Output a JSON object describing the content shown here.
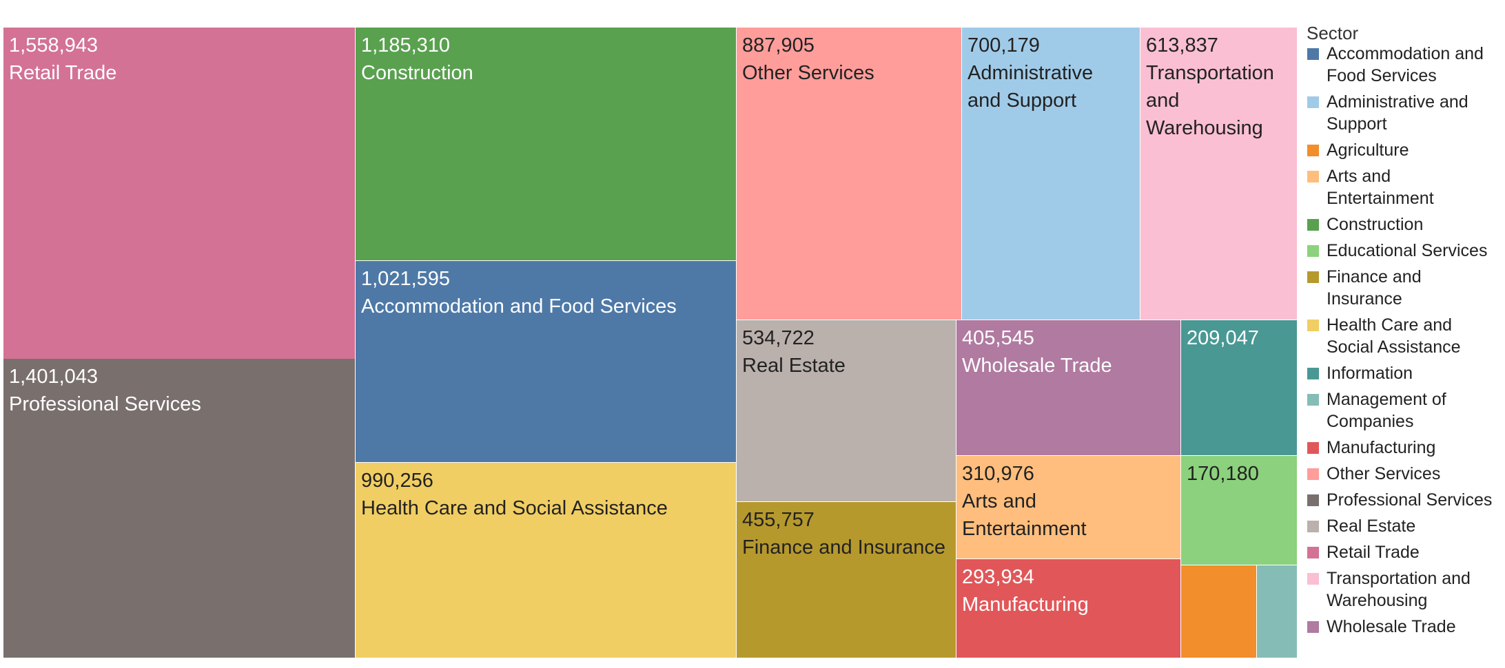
{
  "chart_data": {
    "type": "treemap",
    "legend_title": "Sector",
    "legend_position": "right",
    "tiles": [
      {
        "sector": "Retail Trade",
        "value": 1558943,
        "value_label": "1,558,943",
        "label_lines": [
          "Retail Trade"
        ],
        "color": "#D37295",
        "text_color": "#ffffff"
      },
      {
        "sector": "Professional Services",
        "value": 1401043,
        "value_label": "1,401,043",
        "label_lines": [
          "Professional Services"
        ],
        "color": "#79706E",
        "text_color": "#ffffff"
      },
      {
        "sector": "Construction",
        "value": 1185310,
        "value_label": "1,185,310",
        "label_lines": [
          "Construction"
        ],
        "color": "#59A14F",
        "text_color": "#ffffff"
      },
      {
        "sector": "Accommodation and Food Services",
        "value": 1021595,
        "value_label": "1,021,595",
        "label_lines": [
          "Accommodation and Food Services"
        ],
        "color": "#4E79A7",
        "text_color": "#ffffff"
      },
      {
        "sector": "Health Care and Social Assistance",
        "value": 990256,
        "value_label": "990,256",
        "label_lines": [
          "Health Care and Social Assistance"
        ],
        "color": "#F1CE63",
        "text_color": "#222222"
      },
      {
        "sector": "Other Services",
        "value": 887905,
        "value_label": "887,905",
        "label_lines": [
          "Other Services"
        ],
        "color": "#FF9D9A",
        "text_color": "#222222"
      },
      {
        "sector": "Administrative and Support",
        "value": 700179,
        "value_label": "700,179",
        "label_lines": [
          "Administrative",
          "and Support"
        ],
        "color": "#A0CBE8",
        "text_color": "#222222"
      },
      {
        "sector": "Transportation and Warehousing",
        "value": 613837,
        "value_label": "613,837",
        "label_lines": [
          "Transportation",
          "and",
          "Warehousing"
        ],
        "color": "#FABFD2",
        "text_color": "#222222"
      },
      {
        "sector": "Real Estate",
        "value": 534722,
        "value_label": "534,722",
        "label_lines": [
          "Real Estate"
        ],
        "color": "#BAB0AC",
        "text_color": "#222222"
      },
      {
        "sector": "Finance and Insurance",
        "value": 455757,
        "value_label": "455,757",
        "label_lines": [
          "Finance and Insurance"
        ],
        "color": "#B6992D",
        "text_color": "#222222"
      },
      {
        "sector": "Wholesale Trade",
        "value": 405545,
        "value_label": "405,545",
        "label_lines": [
          "Wholesale Trade"
        ],
        "color": "#B07AA1",
        "text_color": "#ffffff"
      },
      {
        "sector": "Arts and Entertainment",
        "value": 310976,
        "value_label": "310,976",
        "label_lines": [
          "Arts and",
          "Entertainment"
        ],
        "color": "#FFBE7D",
        "text_color": "#222222"
      },
      {
        "sector": "Manufacturing",
        "value": 293934,
        "value_label": "293,934",
        "label_lines": [
          "Manufacturing"
        ],
        "color": "#E15759",
        "text_color": "#ffffff"
      },
      {
        "sector": "Information",
        "value": 209047,
        "value_label": "209,047",
        "label_lines": [],
        "color": "#499894",
        "text_color": "#ffffff"
      },
      {
        "sector": "Educational Services",
        "value": 170180,
        "value_label": "170,180",
        "label_lines": [],
        "color": "#8CD17D",
        "text_color": "#222222"
      },
      {
        "sector": "Agriculture",
        "value": 0,
        "value_label": "",
        "label_lines": [],
        "color": "#F28E2B",
        "text_color": "#222222"
      },
      {
        "sector": "Management of Companies",
        "value": 0,
        "value_label": "",
        "label_lines": [],
        "color": "#86BCB6",
        "text_color": "#222222"
      }
    ],
    "legend": [
      {
        "label_lines": [
          "Accommodation and",
          "Food Services"
        ],
        "color": "#4E79A7"
      },
      {
        "label_lines": [
          "Administrative and",
          "Support"
        ],
        "color": "#A0CBE8"
      },
      {
        "label_lines": [
          "Agriculture"
        ],
        "color": "#F28E2B"
      },
      {
        "label_lines": [
          "Arts and",
          "Entertainment"
        ],
        "color": "#FFBE7D"
      },
      {
        "label_lines": [
          "Construction"
        ],
        "color": "#59A14F"
      },
      {
        "label_lines": [
          "Educational Services"
        ],
        "color": "#8CD17D"
      },
      {
        "label_lines": [
          "Finance and",
          "Insurance"
        ],
        "color": "#B6992D"
      },
      {
        "label_lines": [
          "Health Care and",
          "Social Assistance"
        ],
        "color": "#F1CE63"
      },
      {
        "label_lines": [
          "Information"
        ],
        "color": "#499894"
      },
      {
        "label_lines": [
          "Management of",
          "Companies"
        ],
        "color": "#86BCB6"
      },
      {
        "label_lines": [
          "Manufacturing"
        ],
        "color": "#E15759"
      },
      {
        "label_lines": [
          "Other Services"
        ],
        "color": "#FF9D9A"
      },
      {
        "label_lines": [
          "Professional Services"
        ],
        "color": "#79706E"
      },
      {
        "label_lines": [
          "Real Estate"
        ],
        "color": "#BAB0AC"
      },
      {
        "label_lines": [
          "Retail Trade"
        ],
        "color": "#D37295"
      },
      {
        "label_lines": [
          "Transportation and",
          "Warehousing"
        ],
        "color": "#FABFD2"
      },
      {
        "label_lines": [
          "Wholesale Trade"
        ],
        "color": "#B07AA1"
      }
    ]
  }
}
